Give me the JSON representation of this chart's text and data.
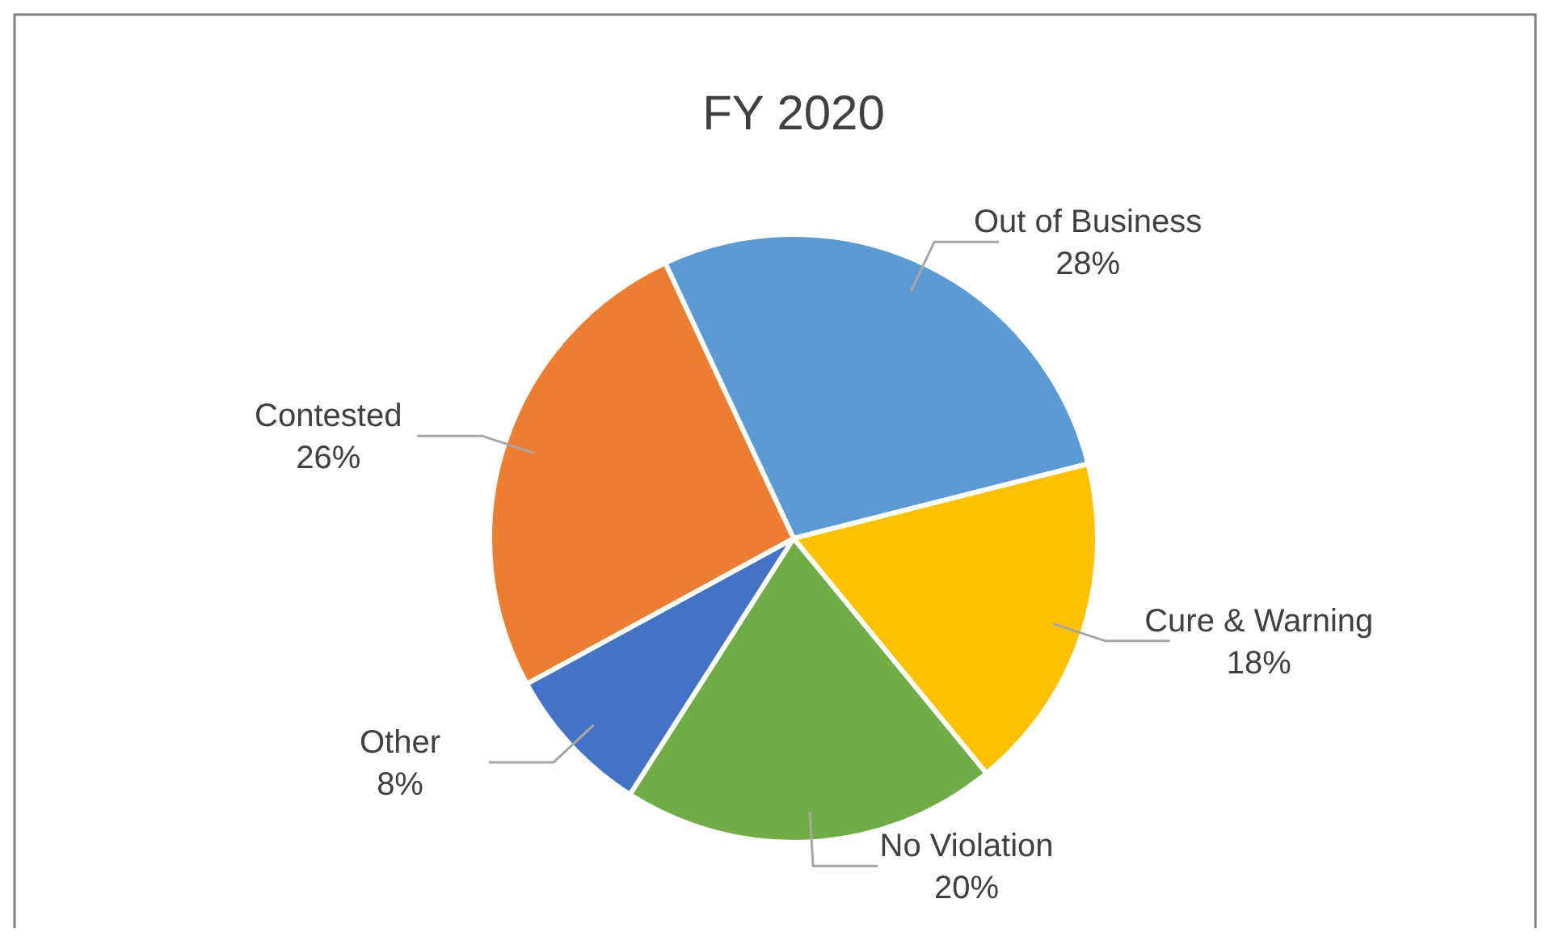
{
  "chart_data": {
    "type": "pie",
    "title": "FY 2020",
    "categories": [
      "Out of Business",
      "Cure & Warning",
      "No Violation",
      "Other",
      "Contested"
    ],
    "values": [
      28,
      18,
      20,
      8,
      26
    ],
    "colors": [
      "#5b9bd5",
      "#ffc000",
      "#70ad47",
      "#4472c4",
      "#ed7d31"
    ],
    "value_labels": [
      "28%",
      "18%",
      "20%",
      "8%",
      "26%"
    ]
  }
}
